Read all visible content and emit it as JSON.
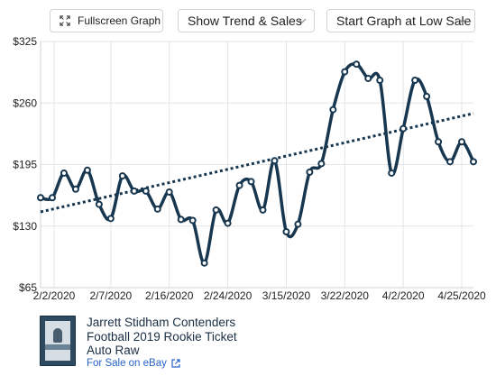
{
  "toolbar": {
    "fullscreen_label": "Fullscreen Graph",
    "trend_label": "Show Trend & Sales",
    "start_label": "Start Graph at Low Sale"
  },
  "icons": {
    "fullscreen": "expand-icon",
    "chevron": "chevron-down-icon",
    "external": "external-link-icon"
  },
  "colors": {
    "line": "#17364f",
    "grid": "#e3e5e8",
    "link": "#2563c9"
  },
  "card": {
    "title_lines": [
      "Jarrett Stidham Contenders",
      "Football 2019 Rookie Ticket",
      "Auto Raw"
    ],
    "link_label": "For Sale on eBay"
  },
  "chart_data": {
    "type": "line",
    "title": "",
    "xlabel": "",
    "ylabel": "",
    "ylim": [
      65,
      325
    ],
    "yticks": [
      "$65",
      "$130",
      "$195",
      "$260",
      "$325"
    ],
    "xticks": [
      "2/2/2020",
      "2/7/2020",
      "2/16/2020",
      "2/24/2020",
      "3/15/2020",
      "3/22/2020",
      "4/2/2020",
      "4/25/2020"
    ],
    "grid": true,
    "series": [
      {
        "values": [
          160,
          160,
          186,
          169,
          189,
          153,
          138,
          183,
          167,
          167,
          148,
          166,
          137,
          136,
          91,
          147,
          133,
          173,
          177,
          147,
          199,
          124,
          132,
          187,
          196,
          253,
          293,
          301,
          286,
          284,
          186,
          233,
          284,
          267,
          219,
          198,
          219,
          198
        ]
      }
    ],
    "trend": {
      "start": 145,
      "end": 249
    }
  }
}
